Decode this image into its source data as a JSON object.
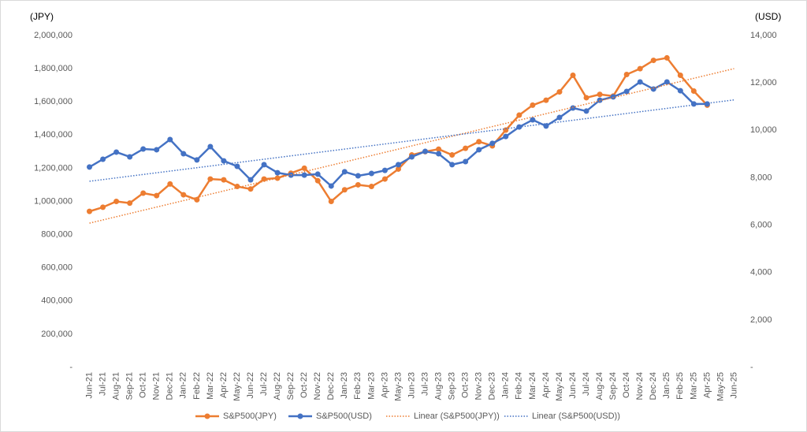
{
  "chart_data": {
    "type": "line",
    "y_label": "(JPY)",
    "y2_label": "(USD)",
    "categories": [
      "Jun-21",
      "Jul-21",
      "Aug-21",
      "Sep-21",
      "Oct-21",
      "Nov-21",
      "Dec-21",
      "Jan-22",
      "Feb-22",
      "Mar-22",
      "Apr-22",
      "May-22",
      "Jun-22",
      "Jul-22",
      "Aug-22",
      "Sep-22",
      "Oct-22",
      "Nov-22",
      "Dec-22",
      "Jan-23",
      "Feb-23",
      "Mar-23",
      "Apr-23",
      "May-23",
      "Jun-23",
      "Jul-23",
      "Aug-23",
      "Sep-23",
      "Oct-23",
      "Nov-23",
      "Dec-23",
      "Jan-24",
      "Feb-24",
      "Mar-24",
      "Apr-24",
      "May-24",
      "Jun-24",
      "Jul-24",
      "Aug-24",
      "Sep-24",
      "Oct-24",
      "Nov-24",
      "Dec-24",
      "Jan-25",
      "Feb-25",
      "Mar-25",
      "Apr-25",
      "May-25",
      "Jun-25"
    ],
    "series": [
      {
        "name": "S&P500(JPY)",
        "color": "#ed7d31",
        "style": "solid",
        "markers": true,
        "axis": "y",
        "values": [
          940000,
          965000,
          1000000,
          990000,
          1050000,
          1035000,
          1105000,
          1040000,
          1010000,
          1135000,
          1130000,
          1090000,
          1075000,
          1135000,
          1140000,
          1170000,
          1200000,
          1125000,
          1000000,
          1070000,
          1100000,
          1090000,
          1135000,
          1195000,
          1280000,
          1300000,
          1315000,
          1280000,
          1320000,
          1360000,
          1335000,
          1430000,
          1520000,
          1580000,
          1610000,
          1660000,
          1760000,
          1625000,
          1645000,
          1635000,
          1765000,
          1800000,
          1850000,
          1865000,
          1760000,
          1665000,
          1580000,
          null,
          null
        ]
      },
      {
        "name": "S&P500(USD)",
        "color": "#4472c4",
        "style": "solid",
        "markers": true,
        "axis": "y2",
        "values": [
          8450,
          8780,
          9080,
          8880,
          9210,
          9180,
          9610,
          9010,
          8750,
          9310,
          8710,
          8480,
          7910,
          8550,
          8210,
          8110,
          8110,
          8150,
          7650,
          8250,
          8080,
          8180,
          8310,
          8550,
          8880,
          9110,
          9010,
          8550,
          8680,
          9180,
          9450,
          9740,
          10140,
          10440,
          10180,
          10540,
          10940,
          10810,
          11270,
          11410,
          11640,
          12040,
          11740,
          12040,
          11670,
          11110,
          11110,
          null,
          null
        ]
      },
      {
        "name": "Linear (S&P500(JPY))",
        "color": "#ed7d31",
        "style": "dotted",
        "markers": false,
        "axis": "y",
        "values": [
          869000,
          888400,
          907800,
          927200,
          946600,
          966000,
          985400,
          1004800,
          1024200,
          1043600,
          1063000,
          1082400,
          1101800,
          1121200,
          1140600,
          1160000,
          1179400,
          1198800,
          1218200,
          1237600,
          1257000,
          1276400,
          1295800,
          1315200,
          1334600,
          1354000,
          1373400,
          1392800,
          1412200,
          1431600,
          1451000,
          1470400,
          1489800,
          1509200,
          1528600,
          1548000,
          1567400,
          1586800,
          1606200,
          1625600,
          1645000,
          1664400,
          1683800,
          1703200,
          1722600,
          1742000,
          1761400,
          1780800,
          1800200
        ]
      },
      {
        "name": "Linear (S&P500(USD))",
        "color": "#4472c4",
        "style": "dotted",
        "markers": false,
        "axis": "y2",
        "values": [
          7850,
          7921.5,
          7993,
          8064.5,
          8136,
          8207.5,
          8279,
          8350.5,
          8422,
          8493.5,
          8565,
          8636.5,
          8708,
          8779.5,
          8851,
          8922.5,
          8994,
          9065.5,
          9137,
          9208.5,
          9280,
          9351.5,
          9423,
          9494.5,
          9566,
          9637.5,
          9709,
          9780.5,
          9852,
          9923.5,
          9995,
          10066.5,
          10138,
          10209.5,
          10281,
          10352.5,
          10424,
          10495.5,
          10567,
          10638.5,
          10710,
          10781.5,
          10853,
          10924.5,
          10996,
          11067.5,
          11139,
          11210.5,
          11282
        ]
      }
    ],
    "ylim": [
      0,
      2000000
    ],
    "yticks": [
      {
        "value": 0,
        "label": "-"
      },
      {
        "value": 200000,
        "label": "200,000"
      },
      {
        "value": 400000,
        "label": "400,000"
      },
      {
        "value": 600000,
        "label": "600,000"
      },
      {
        "value": 800000,
        "label": "800,000"
      },
      {
        "value": 1000000,
        "label": "1,000,000"
      },
      {
        "value": 1200000,
        "label": "1,200,000"
      },
      {
        "value": 1400000,
        "label": "1,400,000"
      },
      {
        "value": 1600000,
        "label": "1,600,000"
      },
      {
        "value": 1800000,
        "label": "1,800,000"
      },
      {
        "value": 2000000,
        "label": "2,000,000"
      }
    ],
    "y2lim": [
      0,
      14000
    ],
    "y2ticks": [
      {
        "value": 0,
        "label": "-"
      },
      {
        "value": 2000,
        "label": "2,000"
      },
      {
        "value": 4000,
        "label": "4,000"
      },
      {
        "value": 6000,
        "label": "6,000"
      },
      {
        "value": 8000,
        "label": "8,000"
      },
      {
        "value": 10000,
        "label": "10,000"
      },
      {
        "value": 12000,
        "label": "12,000"
      },
      {
        "value": 14000,
        "label": "14,000"
      }
    ],
    "grid": false,
    "legend": "bottom"
  }
}
